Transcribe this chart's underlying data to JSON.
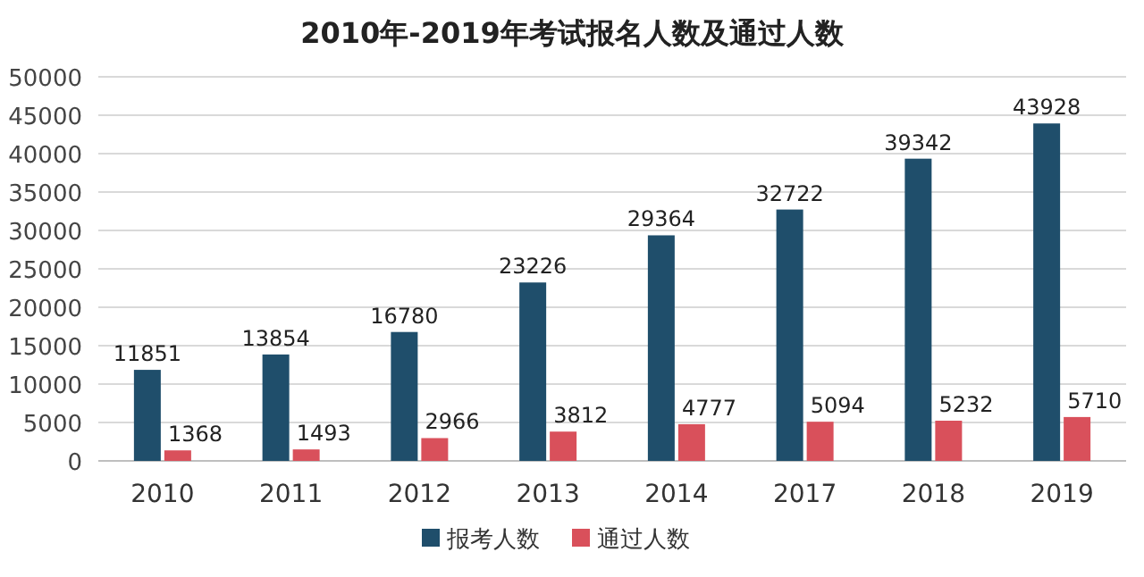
{
  "chart_data": {
    "type": "bar",
    "title": "2010年-2019年考试报名人数及通过人数",
    "categories": [
      "2010",
      "2011",
      "2012",
      "2013",
      "2014",
      "2017",
      "2018",
      "2019"
    ],
    "series": [
      {
        "name": "报考人数",
        "color": "#1f4e6b",
        "values": [
          11851,
          13854,
          16780,
          23226,
          29364,
          32722,
          39342,
          43928
        ]
      },
      {
        "name": "通过人数",
        "color": "#d9505b",
        "values": [
          1368,
          1493,
          2966,
          3812,
          4777,
          5094,
          5232,
          5710
        ]
      }
    ],
    "ylim": [
      0,
      50000
    ],
    "yticks": [
      0,
      5000,
      10000,
      15000,
      20000,
      25000,
      30000,
      35000,
      40000,
      45000,
      50000
    ],
    "grid": "y",
    "legend": "bottom",
    "data_labels": true
  }
}
